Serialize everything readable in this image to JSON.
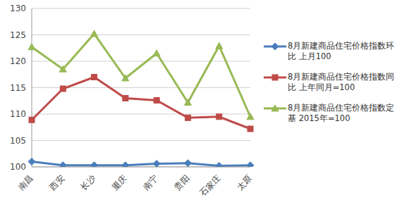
{
  "chart_data": {
    "type": "line",
    "categories": [
      "南昌",
      "西安",
      "长沙",
      "重庆",
      "南宁",
      "贵阳",
      "石家庄",
      "太原"
    ],
    "series": [
      {
        "name": "8月新建商品住宅价格指数环比 上月100",
        "color": "#4a7ebb",
        "marker": "diamond",
        "values": [
          101.0,
          100.3,
          100.3,
          100.3,
          100.6,
          100.7,
          100.2,
          100.3
        ]
      },
      {
        "name": "8月新建商品住宅价格指数同比 上年同月=100",
        "color": "#be4b48",
        "marker": "square",
        "values": [
          108.9,
          114.8,
          117.0,
          113.0,
          112.6,
          109.3,
          109.5,
          107.2
        ]
      },
      {
        "name": "8月新建商品住宅价格指数定基 2015年=100",
        "color": "#98b954",
        "marker": "triangle",
        "values": [
          122.7,
          118.5,
          125.2,
          116.8,
          121.5,
          112.2,
          122.9,
          109.5
        ]
      }
    ],
    "ylim": [
      100,
      130
    ],
    "yticks": [
      100,
      105,
      110,
      115,
      120,
      125,
      130
    ],
    "grid": true,
    "legend": "right"
  }
}
